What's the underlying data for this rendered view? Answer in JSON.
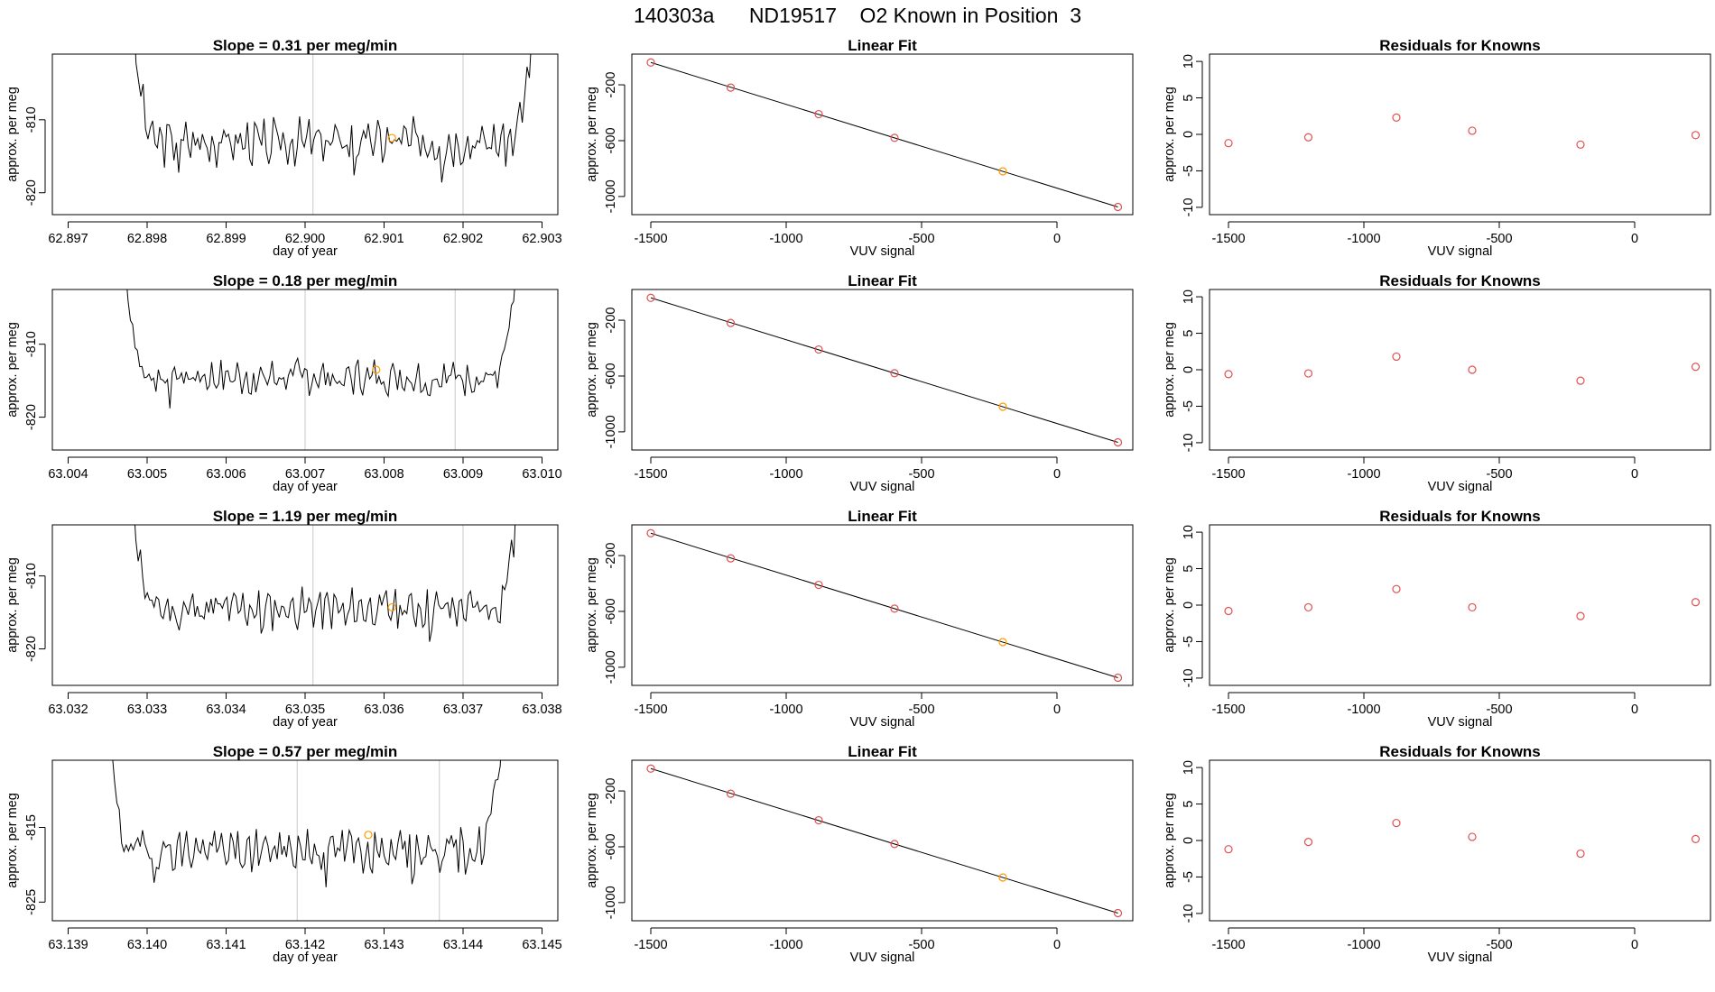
{
  "main_title": "140303a      ND19517    O2 Known in Position  3",
  "colors": {
    "trace": "#000000",
    "frame": "#000000",
    "marker": "#e05050",
    "highlight": "#ff9900",
    "vline": "#c8c8c8"
  },
  "chart_data": [
    {
      "row": 0,
      "col": 0,
      "type": "line",
      "title": "Slope =  0.31  per meg/min",
      "xlabel": "day of year",
      "ylabel": "approx. per meg",
      "xlim": [
        62.8968,
        62.9032
      ],
      "ylim": [
        -823,
        -801
      ],
      "xticks": [
        62.897,
        62.898,
        62.899,
        62.9,
        62.901,
        62.902,
        62.903
      ],
      "xdec": 3,
      "yticks": [
        -810,
        -820
      ],
      "vlines": [
        62.9001,
        62.902
      ],
      "highlight": {
        "x": 62.9011,
        "y": -812.5
      },
      "trace_start": 62.8978,
      "trace_end": 62.9029,
      "trace_mid": -813,
      "trace_amp": 2.3,
      "trace_seed": 3
    },
    {
      "row": 0,
      "col": 1,
      "type": "scatter",
      "title": "Linear Fit",
      "xlabel": "VUV signal",
      "ylabel": "approx. per meg",
      "xlim": [
        -1570,
        280
      ],
      "ylim": [
        -1130,
        20
      ],
      "xticks": [
        -1500,
        -1000,
        -500,
        0
      ],
      "xdec": 0,
      "yticks": [
        -200,
        -600,
        -1000
      ],
      "points": [
        [
          -1500,
          -40
        ],
        [
          -1205,
          -220
        ],
        [
          -880,
          -410
        ],
        [
          -600,
          -580
        ],
        [
          -200,
          -820
        ],
        [
          225,
          -1075
        ]
      ],
      "highlight_index": 4,
      "fit_line": [
        [
          -1500,
          -40
        ],
        [
          225,
          -1075
        ]
      ]
    },
    {
      "row": 0,
      "col": 2,
      "type": "scatter",
      "title": "Residuals for Knowns",
      "xlabel": "VUV signal",
      "ylabel": "approx. per meg",
      "xlim": [
        -1570,
        280
      ],
      "ylim": [
        -11,
        11
      ],
      "xticks": [
        -1500,
        -1000,
        -500,
        0
      ],
      "xdec": 0,
      "yticks": [
        10,
        5,
        0,
        -5,
        -10
      ],
      "points": [
        [
          -1500,
          -1.2
        ],
        [
          -1205,
          -0.4
        ],
        [
          -880,
          2.3
        ],
        [
          -600,
          0.5
        ],
        [
          -200,
          -1.4
        ],
        [
          225,
          -0.1
        ]
      ]
    },
    {
      "row": 1,
      "col": 0,
      "type": "line",
      "title": "Slope =  0.18  per meg/min",
      "xlabel": "day of year",
      "ylabel": "approx. per meg",
      "xlim": [
        63.0038,
        63.0102
      ],
      "ylim": [
        -824.5,
        -802.5
      ],
      "xticks": [
        63.004,
        63.005,
        63.006,
        63.007,
        63.008,
        63.009,
        63.01
      ],
      "xdec": 3,
      "yticks": [
        -810,
        -820
      ],
      "vlines": [
        63.007,
        63.0089
      ],
      "highlight": {
        "x": 63.0079,
        "y": -813.5
      },
      "trace_start": 63.0047,
      "trace_end": 63.0097,
      "trace_mid": -814.5,
      "trace_amp": 1.8,
      "trace_seed": 7
    },
    {
      "row": 1,
      "col": 1,
      "type": "scatter",
      "title": "Linear Fit",
      "xlabel": "VUV signal",
      "ylabel": "approx. per meg",
      "xlim": [
        -1570,
        280
      ],
      "ylim": [
        -1130,
        20
      ],
      "xticks": [
        -1500,
        -1000,
        -500,
        0
      ],
      "xdec": 0,
      "yticks": [
        -200,
        -600,
        -1000
      ],
      "points": [
        [
          -1500,
          -40
        ],
        [
          -1205,
          -220
        ],
        [
          -880,
          -410
        ],
        [
          -600,
          -580
        ],
        [
          -200,
          -820
        ],
        [
          225,
          -1075
        ]
      ],
      "highlight_index": 4,
      "fit_line": [
        [
          -1500,
          -40
        ],
        [
          225,
          -1075
        ]
      ]
    },
    {
      "row": 1,
      "col": 2,
      "type": "scatter",
      "title": "Residuals for Knowns",
      "xlabel": "VUV signal",
      "ylabel": "approx. per meg",
      "xlim": [
        -1570,
        280
      ],
      "ylim": [
        -11,
        11
      ],
      "xticks": [
        -1500,
        -1000,
        -500,
        0
      ],
      "xdec": 0,
      "yticks": [
        10,
        5,
        0,
        -5,
        -10
      ],
      "points": [
        [
          -1500,
          -0.6
        ],
        [
          -1205,
          -0.5
        ],
        [
          -880,
          1.8
        ],
        [
          -600,
          0.0
        ],
        [
          -200,
          -1.5
        ],
        [
          225,
          0.4
        ]
      ]
    },
    {
      "row": 2,
      "col": 0,
      "type": "line",
      "title": "Slope =  1.19  per meg/min",
      "xlabel": "day of year",
      "ylabel": "approx. per meg",
      "xlim": [
        63.0318,
        63.0382
      ],
      "ylim": [
        -825,
        -803
      ],
      "xticks": [
        63.032,
        63.033,
        63.034,
        63.035,
        63.036,
        63.037,
        63.038
      ],
      "xdec": 3,
      "yticks": [
        -810,
        -820
      ],
      "vlines": [
        63.0351,
        63.037
      ],
      "highlight": {
        "x": 63.0361,
        "y": -814.3
      },
      "trace_start": 63.0328,
      "trace_end": 63.0377,
      "trace_mid": -814.5,
      "trace_amp": 2.0,
      "trace_seed": 11
    },
    {
      "row": 2,
      "col": 1,
      "type": "scatter",
      "title": "Linear Fit",
      "xlabel": "VUV signal",
      "ylabel": "approx. per meg",
      "xlim": [
        -1570,
        280
      ],
      "ylim": [
        -1130,
        20
      ],
      "xticks": [
        -1500,
        -1000,
        -500,
        0
      ],
      "xdec": 0,
      "yticks": [
        -200,
        -600,
        -1000
      ],
      "points": [
        [
          -1500,
          -40
        ],
        [
          -1205,
          -220
        ],
        [
          -880,
          -410
        ],
        [
          -600,
          -580
        ],
        [
          -200,
          -820
        ],
        [
          225,
          -1075
        ]
      ],
      "highlight_index": 4,
      "fit_line": [
        [
          -1500,
          -40
        ],
        [
          225,
          -1075
        ]
      ]
    },
    {
      "row": 2,
      "col": 2,
      "type": "scatter",
      "title": "Residuals for Knowns",
      "xlabel": "VUV signal",
      "ylabel": "approx. per meg",
      "xlim": [
        -1570,
        280
      ],
      "ylim": [
        -11,
        11
      ],
      "xticks": [
        -1500,
        -1000,
        -500,
        0
      ],
      "xdec": 0,
      "yticks": [
        10,
        5,
        0,
        -5,
        -10
      ],
      "points": [
        [
          -1500,
          -0.8
        ],
        [
          -1205,
          -0.3
        ],
        [
          -880,
          2.2
        ],
        [
          -600,
          -0.3
        ],
        [
          -200,
          -1.5
        ],
        [
          225,
          0.4
        ]
      ]
    },
    {
      "row": 3,
      "col": 0,
      "type": "line",
      "title": "Slope =  0.57  per meg/min",
      "xlabel": "day of year",
      "ylabel": "approx. per meg",
      "xlim": [
        63.1388,
        63.1452
      ],
      "ylim": [
        -827.5,
        -806
      ],
      "xticks": [
        63.139,
        63.14,
        63.141,
        63.142,
        63.143,
        63.144,
        63.145
      ],
      "xdec": 3,
      "yticks": [
        -815,
        -825
      ],
      "vlines": [
        63.1419,
        63.1437
      ],
      "highlight": {
        "x": 63.1428,
        "y": -816
      },
      "trace_start": 63.1395,
      "trace_end": 63.1445,
      "trace_mid": -818,
      "trace_amp": 2.2,
      "trace_seed": 19
    },
    {
      "row": 3,
      "col": 1,
      "type": "scatter",
      "title": "Linear Fit",
      "xlabel": "VUV signal",
      "ylabel": "approx. per meg",
      "xlim": [
        -1570,
        280
      ],
      "ylim": [
        -1130,
        20
      ],
      "xticks": [
        -1500,
        -1000,
        -500,
        0
      ],
      "xdec": 0,
      "yticks": [
        -200,
        -600,
        -1000
      ],
      "points": [
        [
          -1500,
          -40
        ],
        [
          -1205,
          -220
        ],
        [
          -880,
          -410
        ],
        [
          -600,
          -580
        ],
        [
          -200,
          -820
        ],
        [
          225,
          -1075
        ]
      ],
      "highlight_index": 4,
      "fit_line": [
        [
          -1500,
          -40
        ],
        [
          225,
          -1075
        ]
      ]
    },
    {
      "row": 3,
      "col": 2,
      "type": "scatter",
      "title": "Residuals for Knowns",
      "xlabel": "VUV signal",
      "ylabel": "approx. per meg",
      "xlim": [
        -1570,
        280
      ],
      "ylim": [
        -11,
        11
      ],
      "xticks": [
        -1500,
        -1000,
        -500,
        0
      ],
      "xdec": 0,
      "yticks": [
        10,
        5,
        0,
        -5,
        -10
      ],
      "points": [
        [
          -1500,
          -1.2
        ],
        [
          -1205,
          -0.2
        ],
        [
          -880,
          2.4
        ],
        [
          -600,
          0.5
        ],
        [
          -200,
          -1.8
        ],
        [
          225,
          0.2
        ]
      ]
    }
  ]
}
